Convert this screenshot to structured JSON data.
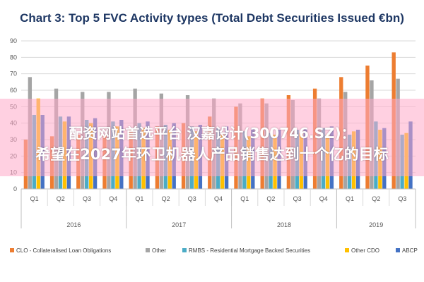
{
  "chart_data": {
    "type": "bar",
    "title": "Chart 3: Top 5 FVC Activity types (Total Debt Securities Issued €bn)",
    "xlabel": "",
    "ylabel": "",
    "ylim": [
      0,
      90
    ],
    "yticks": [
      0,
      10,
      20,
      30,
      40,
      50,
      60,
      70,
      80,
      90
    ],
    "grid": true,
    "legend_position": "bottom",
    "categories": [
      "Q1",
      "Q2",
      "Q3",
      "Q4",
      "Q1",
      "Q2",
      "Q3",
      "Q4",
      "Q1",
      "Q2",
      "Q3",
      "Q4",
      "Q1",
      "Q2",
      "Q3"
    ],
    "years": [
      {
        "label": "2016",
        "span": 4
      },
      {
        "label": "2017",
        "span": 4
      },
      {
        "label": "2018",
        "span": 4
      },
      {
        "label": "2019",
        "span": 3
      }
    ],
    "series": [
      {
        "name": "CLO - Collateralised Loan Obligations",
        "color": "#ed7d31",
        "values": [
          30,
          32,
          33,
          33,
          36,
          38,
          40,
          44,
          50,
          55,
          57,
          61,
          68,
          75,
          83
        ]
      },
      {
        "name": "Other",
        "color": "#a5a5a5",
        "values": [
          68,
          61,
          59,
          59,
          61,
          58,
          57,
          55,
          52,
          52,
          54,
          55,
          59,
          66,
          67
        ]
      },
      {
        "name": "RMBS - Residential Mortgage Backed Securities",
        "color": "#4bacc6",
        "values": [
          45,
          44,
          42,
          41,
          40,
          39,
          38,
          37,
          35,
          34,
          36,
          37,
          33,
          41,
          33
        ]
      },
      {
        "name": "Other CDO",
        "color": "#ffc000",
        "values": [
          55,
          41,
          40,
          38,
          37,
          36,
          35,
          33,
          32,
          33,
          34,
          33,
          35,
          36,
          34
        ]
      },
      {
        "name": "ABCP",
        "color": "#4472c4",
        "values": [
          45,
          44,
          43,
          42,
          41,
          40,
          39,
          38,
          37,
          36,
          37,
          38,
          36,
          37,
          41
        ]
      }
    ]
  },
  "watermark": {
    "line1": "配资网站首选平台 汉嘉设计(300746.SZ)：",
    "line2": "希望在2027年环卫机器人产品销售达到十个亿的目标"
  }
}
